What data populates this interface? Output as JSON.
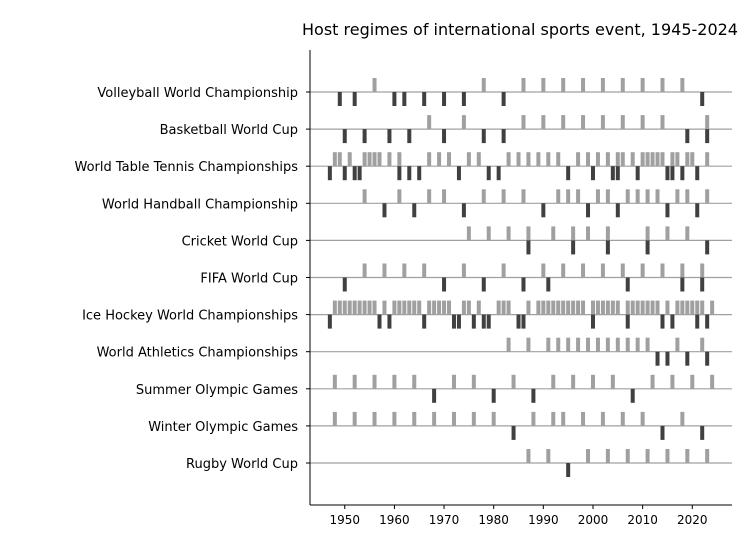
{
  "chart_data": {
    "type": "event-timeline",
    "title": "Host regimes of international sports event, 1945-2024",
    "x_ticks": [
      1950,
      1960,
      1970,
      1980,
      1990,
      2000,
      2010,
      2020
    ],
    "xlim": [
      1943,
      2028
    ],
    "grid": false,
    "colors": {
      "upper_marker": "#a0a0a0",
      "lower_marker": "#404040",
      "baseline": "#a0a0a0",
      "axis": "#000000"
    },
    "categories": [
      "Volleyball World Championship",
      "Basketball World Cup",
      "World Table Tennis Championships",
      "World Handball Championship",
      "Cricket World Cup",
      "FIFA World Cup",
      "Ice Hockey World Championships",
      "World Athletics Championships",
      "Summer Olympic Games",
      "Winter Olympic Games",
      "Rugby World Cup"
    ],
    "series": [
      {
        "category": "Volleyball World Championship",
        "upper_years": [
          1956,
          1978,
          1986,
          1990,
          1994,
          1998,
          2002,
          2006,
          2010,
          2014,
          2018
        ],
        "lower_years": [
          1949,
          1952,
          1960,
          1962,
          1966,
          1970,
          1974,
          1982,
          2022
        ]
      },
      {
        "category": "Basketball World Cup",
        "upper_years": [
          1967,
          1974,
          1986,
          1990,
          1994,
          1998,
          2002,
          2006,
          2010,
          2014,
          2023
        ],
        "lower_years": [
          1950,
          1954,
          1959,
          1963,
          1970,
          1978,
          1982,
          2019,
          2023
        ]
      },
      {
        "category": "World Table Tennis Championships",
        "upper_years": [
          1948,
          1949,
          1951,
          1954,
          1955,
          1956,
          1957,
          1959,
          1961,
          1967,
          1969,
          1971,
          1975,
          1977,
          1983,
          1985,
          1987,
          1989,
          1991,
          1993,
          1997,
          1999,
          2001,
          2003,
          2005,
          2006,
          2008,
          2010,
          2011,
          2012,
          2013,
          2014,
          2016,
          2017,
          2019,
          2020,
          2023
        ],
        "lower_years": [
          1947,
          1950,
          1952,
          1953,
          1961,
          1963,
          1965,
          1973,
          1979,
          1981,
          1995,
          2000,
          2004,
          2005,
          2009,
          2015,
          2016,
          2018,
          2021
        ]
      },
      {
        "category": "World Handball Championship",
        "upper_years": [
          1954,
          1961,
          1967,
          1970,
          1978,
          1982,
          1986,
          1993,
          1995,
          1997,
          2001,
          2003,
          2007,
          2009,
          2011,
          2013,
          2017,
          2019,
          2023
        ],
        "lower_years": [
          1958,
          1964,
          1974,
          1990,
          1999,
          2005,
          2015,
          2021
        ]
      },
      {
        "category": "Cricket World Cup",
        "upper_years": [
          1975,
          1979,
          1983,
          1987,
          1992,
          1996,
          1999,
          2003,
          2011,
          2015,
          2019
        ],
        "lower_years": [
          1987,
          1996,
          2003,
          2011,
          2023
        ]
      },
      {
        "category": "FIFA World Cup",
        "upper_years": [
          1954,
          1958,
          1962,
          1966,
          1974,
          1982,
          1990,
          1994,
          1998,
          2002,
          2006,
          2010,
          2014,
          2018,
          2022
        ],
        "lower_years": [
          1950,
          1970,
          1978,
          1986,
          1991,
          2007,
          2018,
          2022
        ]
      },
      {
        "category": "Ice Hockey World Championships",
        "upper_years": [
          1948,
          1949,
          1950,
          1951,
          1952,
          1953,
          1954,
          1955,
          1956,
          1958,
          1960,
          1961,
          1962,
          1963,
          1964,
          1965,
          1967,
          1968,
          1969,
          1970,
          1971,
          1974,
          1975,
          1977,
          1981,
          1982,
          1983,
          1987,
          1989,
          1990,
          1991,
          1992,
          1993,
          1994,
          1995,
          1996,
          1997,
          1998,
          2000,
          2001,
          2002,
          2003,
          2004,
          2005,
          2007,
          2008,
          2009,
          2010,
          2011,
          2012,
          2013,
          2015,
          2017,
          2018,
          2019,
          2020,
          2021,
          2022,
          2024
        ],
        "lower_years": [
          1947,
          1957,
          1959,
          1966,
          1972,
          1973,
          1976,
          1978,
          1979,
          1985,
          1986,
          2000,
          2007,
          2014,
          2016,
          2021,
          2023
        ]
      },
      {
        "category": "World Athletics Championships",
        "upper_years": [
          1983,
          1987,
          1991,
          1993,
          1995,
          1997,
          1999,
          2001,
          2003,
          2005,
          2007,
          2009,
          2011,
          2017,
          2022
        ],
        "lower_years": [
          2013,
          2015,
          2019,
          2023
        ]
      },
      {
        "category": "Summer Olympic Games",
        "upper_years": [
          1948,
          1952,
          1956,
          1960,
          1964,
          1972,
          1976,
          1984,
          1992,
          1996,
          2000,
          2004,
          2012,
          2016,
          2020,
          2024
        ],
        "lower_years": [
          1968,
          1980,
          1988,
          2008
        ]
      },
      {
        "category": "Winter Olympic Games",
        "upper_years": [
          1948,
          1952,
          1956,
          1960,
          1964,
          1968,
          1972,
          1976,
          1980,
          1988,
          1992,
          1994,
          1998,
          2002,
          2006,
          2010,
          2018
        ],
        "lower_years": [
          1984,
          2014,
          2022
        ]
      },
      {
        "category": "Rugby World Cup",
        "upper_years": [
          1987,
          1991,
          1999,
          2003,
          2007,
          2011,
          2015,
          2019,
          2023
        ],
        "lower_years": [
          1995
        ]
      }
    ]
  }
}
